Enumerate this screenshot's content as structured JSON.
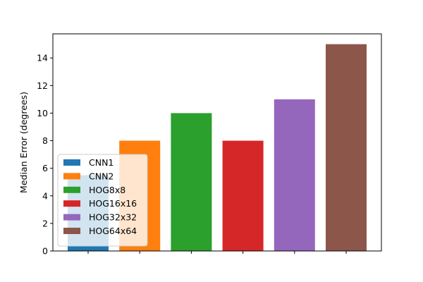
{
  "chart_data": {
    "type": "bar",
    "title": "",
    "xlabel": "",
    "ylabel": "Median Error (degrees)",
    "ylim": [
      0,
      15.75
    ],
    "yticks": [
      0,
      2,
      4,
      6,
      8,
      10,
      12,
      14
    ],
    "grid": false,
    "legend": {
      "placement": "lower-left"
    },
    "series": [
      {
        "name": "CNN1",
        "value": 5.5,
        "color": "#1f77b4"
      },
      {
        "name": "CNN2",
        "value": 8,
        "color": "#ff7f0e"
      },
      {
        "name": "HOG8x8",
        "value": 10,
        "color": "#2ca02c"
      },
      {
        "name": "HOG16x16",
        "value": 8,
        "color": "#d62728"
      },
      {
        "name": "HOG32x32",
        "value": 11,
        "color": "#9467bd"
      },
      {
        "name": "HOG64x64",
        "value": 15,
        "color": "#8c564b"
      }
    ]
  }
}
